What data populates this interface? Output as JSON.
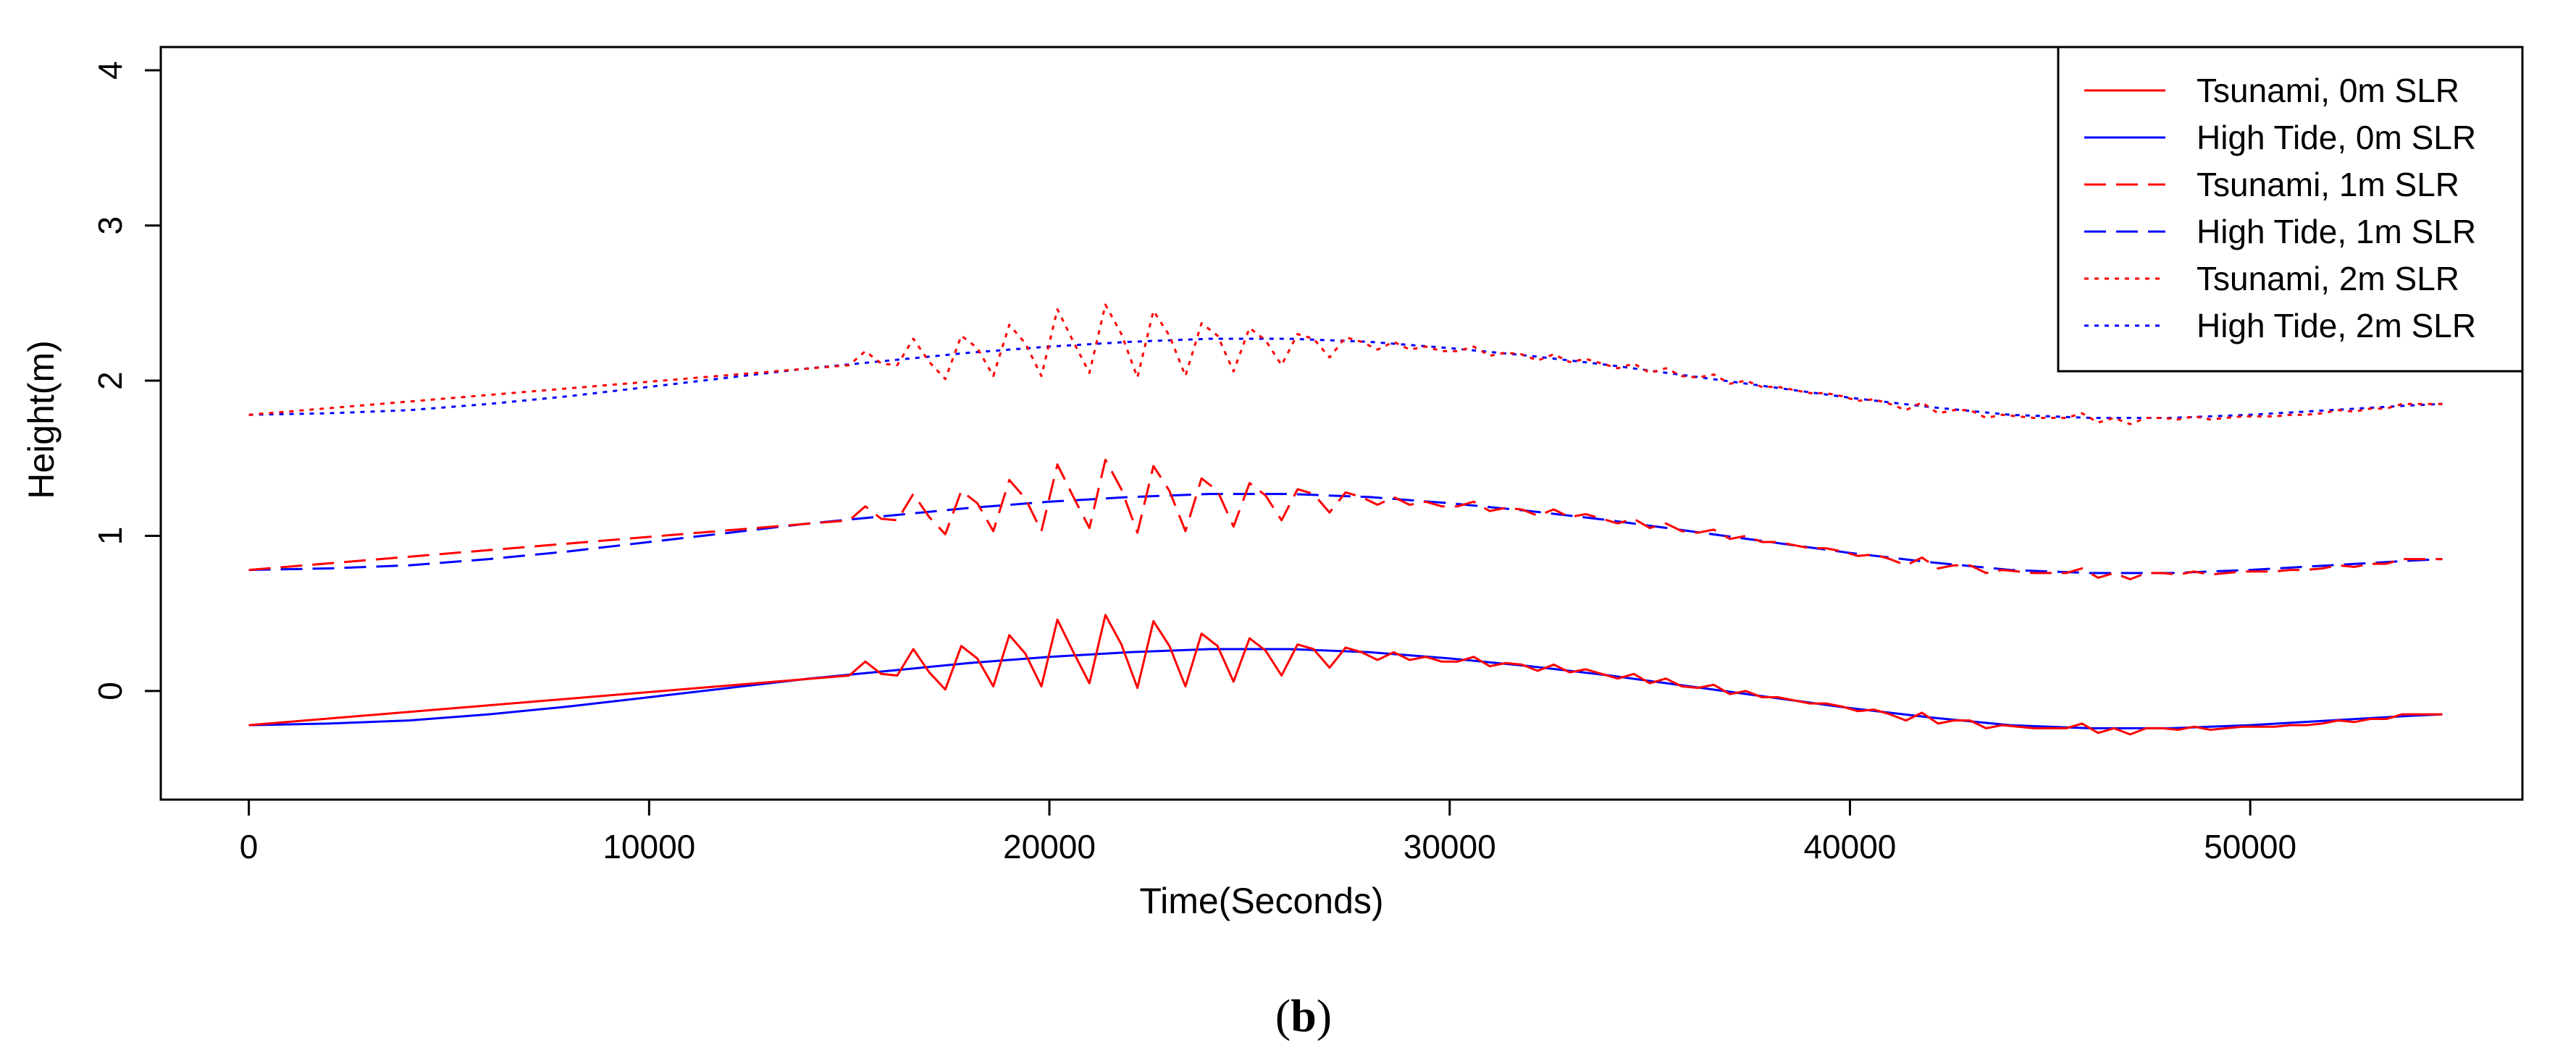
{
  "chart_data": {
    "type": "line",
    "xlabel": "Time(Seconds)",
    "ylabel": "Height(m)",
    "xlim": [
      -2200,
      56800
    ],
    "ylim": [
      -0.7,
      4.15
    ],
    "xticks": [
      0,
      10000,
      20000,
      30000,
      40000,
      50000
    ],
    "xtick_labels": [
      "0",
      "10000",
      "20000",
      "30000",
      "40000",
      "50000"
    ],
    "yticks": [
      0,
      1,
      2,
      3,
      4
    ],
    "ytick_labels": [
      "0",
      "1",
      "2",
      "3",
      "4"
    ],
    "grid": false,
    "legend_position": "top-right",
    "series": [
      {
        "name": "Tsunami, 0m SLR",
        "color": "#ff0000",
        "style": "solid",
        "x": [
          0,
          15000,
          15400,
          15800,
          16200,
          16600,
          17000,
          17400,
          17800,
          18200,
          18600,
          19000,
          19400,
          19800,
          20200,
          20600,
          21000,
          21400,
          21800,
          22200,
          22600,
          23000,
          23400,
          23800,
          24200,
          24600,
          25000,
          25400,
          25800,
          26200,
          26600,
          27000,
          27400,
          27800,
          28200,
          28600,
          29000,
          29400,
          29800,
          30200,
          30600,
          31000,
          31400,
          31800,
          32200,
          32600,
          33000,
          33400,
          33800,
          34200,
          34600,
          35000,
          35400,
          35800,
          36200,
          36600,
          37000,
          37400,
          37800,
          38200,
          38600,
          39000,
          39400,
          39800,
          40200,
          40600,
          41000,
          41400,
          41800,
          42200,
          42600,
          43000,
          43400,
          43800,
          44200,
          44600,
          45000,
          45400,
          45800,
          46200,
          46600,
          47000,
          47400,
          47800,
          48200,
          48600,
          49000,
          49400,
          49800,
          50200,
          50600,
          51000,
          51400,
          51800,
          52200,
          52600,
          53000,
          53400,
          53800,
          54200,
          54600,
          54800
        ],
        "y": [
          -0.22,
          0.1,
          0.19,
          0.11,
          0.1,
          0.27,
          0.12,
          0.01,
          0.29,
          0.21,
          0.03,
          0.36,
          0.24,
          0.03,
          0.46,
          0.25,
          0.05,
          0.49,
          0.3,
          0.02,
          0.45,
          0.29,
          0.03,
          0.37,
          0.29,
          0.06,
          0.34,
          0.26,
          0.1,
          0.3,
          0.27,
          0.15,
          0.28,
          0.25,
          0.2,
          0.25,
          0.2,
          0.22,
          0.19,
          0.19,
          0.22,
          0.16,
          0.18,
          0.17,
          0.13,
          0.17,
          0.12,
          0.14,
          0.11,
          0.08,
          0.11,
          0.05,
          0.08,
          0.03,
          0.02,
          0.04,
          -0.02,
          0.0,
          -0.04,
          -0.04,
          -0.06,
          -0.08,
          -0.08,
          -0.1,
          -0.13,
          -0.12,
          -0.15,
          -0.19,
          -0.14,
          -0.21,
          -0.19,
          -0.19,
          -0.24,
          -0.22,
          -0.23,
          -0.24,
          -0.24,
          -0.24,
          -0.21,
          -0.27,
          -0.24,
          -0.28,
          -0.24,
          -0.24,
          -0.25,
          -0.23,
          -0.25,
          -0.24,
          -0.23,
          -0.23,
          -0.23,
          -0.22,
          -0.22,
          -0.21,
          -0.19,
          -0.2,
          -0.18,
          -0.18,
          -0.15,
          -0.15,
          -0.15,
          -0.15
        ]
      },
      {
        "name": "High Tide, 0m SLR",
        "color": "#0000ff",
        "style": "solid",
        "x": [
          0,
          2000,
          4000,
          6000,
          8000,
          10000,
          12000,
          14000,
          16000,
          18000,
          20000,
          22000,
          24000,
          26000,
          28000,
          30000,
          32000,
          34000,
          36000,
          38000,
          40000,
          42000,
          44000,
          46000,
          48000,
          50000,
          52000,
          54000,
          54800
        ],
        "y": [
          -0.22,
          -0.21,
          -0.19,
          -0.15,
          -0.1,
          -0.04,
          0.02,
          0.08,
          0.13,
          0.18,
          0.22,
          0.25,
          0.27,
          0.27,
          0.25,
          0.21,
          0.16,
          0.1,
          0.03,
          -0.04,
          -0.11,
          -0.17,
          -0.22,
          -0.24,
          -0.24,
          -0.22,
          -0.19,
          -0.16,
          -0.15
        ]
      },
      {
        "name": "Tsunami, 1m SLR",
        "color": "#ff0000",
        "style": "dashed",
        "x": [
          0,
          15000,
          15400,
          15800,
          16200,
          16600,
          17000,
          17400,
          17800,
          18200,
          18600,
          19000,
          19400,
          19800,
          20200,
          20600,
          21000,
          21400,
          21800,
          22200,
          22600,
          23000,
          23400,
          23800,
          24200,
          24600,
          25000,
          25400,
          25800,
          26200,
          26600,
          27000,
          27400,
          27800,
          28200,
          28600,
          29000,
          29400,
          29800,
          30200,
          30600,
          31000,
          31400,
          31800,
          32200,
          32600,
          33000,
          33400,
          33800,
          34200,
          34600,
          35000,
          35400,
          35800,
          36200,
          36600,
          37000,
          37400,
          37800,
          38200,
          38600,
          39000,
          39400,
          39800,
          40200,
          40600,
          41000,
          41400,
          41800,
          42200,
          42600,
          43000,
          43400,
          43800,
          44200,
          44600,
          45000,
          45400,
          45800,
          46200,
          46600,
          47000,
          47400,
          47800,
          48200,
          48600,
          49000,
          49400,
          49800,
          50200,
          50600,
          51000,
          51400,
          51800,
          52200,
          52600,
          53000,
          53400,
          53800,
          54200,
          54600,
          54800
        ],
        "y": [
          0.78,
          1.1,
          1.19,
          1.11,
          1.1,
          1.27,
          1.12,
          1.01,
          1.29,
          1.21,
          1.03,
          1.36,
          1.24,
          1.03,
          1.46,
          1.25,
          1.05,
          1.49,
          1.3,
          1.02,
          1.45,
          1.29,
          1.03,
          1.37,
          1.29,
          1.06,
          1.34,
          1.26,
          1.1,
          1.3,
          1.27,
          1.15,
          1.28,
          1.25,
          1.2,
          1.25,
          1.2,
          1.22,
          1.19,
          1.19,
          1.22,
          1.16,
          1.18,
          1.17,
          1.13,
          1.17,
          1.12,
          1.14,
          1.11,
          1.08,
          1.11,
          1.05,
          1.08,
          1.03,
          1.02,
          1.04,
          0.98,
          1.0,
          0.96,
          0.96,
          0.94,
          0.92,
          0.92,
          0.9,
          0.87,
          0.88,
          0.85,
          0.81,
          0.86,
          0.79,
          0.81,
          0.81,
          0.76,
          0.78,
          0.77,
          0.76,
          0.76,
          0.76,
          0.79,
          0.73,
          0.76,
          0.72,
          0.76,
          0.76,
          0.75,
          0.77,
          0.75,
          0.76,
          0.77,
          0.77,
          0.77,
          0.78,
          0.78,
          0.79,
          0.81,
          0.8,
          0.82,
          0.82,
          0.85,
          0.85,
          0.85,
          0.85
        ]
      },
      {
        "name": "High Tide, 1m SLR",
        "color": "#0000ff",
        "style": "dashed",
        "x": [
          0,
          2000,
          4000,
          6000,
          8000,
          10000,
          12000,
          14000,
          16000,
          18000,
          20000,
          22000,
          24000,
          26000,
          28000,
          30000,
          32000,
          34000,
          36000,
          38000,
          40000,
          42000,
          44000,
          46000,
          48000,
          50000,
          52000,
          54000,
          54800
        ],
        "y": [
          0.78,
          0.79,
          0.81,
          0.85,
          0.9,
          0.96,
          1.02,
          1.08,
          1.13,
          1.18,
          1.22,
          1.25,
          1.27,
          1.27,
          1.25,
          1.21,
          1.16,
          1.1,
          1.03,
          0.96,
          0.89,
          0.83,
          0.78,
          0.76,
          0.76,
          0.78,
          0.81,
          0.84,
          0.85
        ]
      },
      {
        "name": "Tsunami, 2m SLR",
        "color": "#ff0000",
        "style": "dotted",
        "x": [
          0,
          15000,
          15400,
          15800,
          16200,
          16600,
          17000,
          17400,
          17800,
          18200,
          18600,
          19000,
          19400,
          19800,
          20200,
          20600,
          21000,
          21400,
          21800,
          22200,
          22600,
          23000,
          23400,
          23800,
          24200,
          24600,
          25000,
          25400,
          25800,
          26200,
          26600,
          27000,
          27400,
          27800,
          28200,
          28600,
          29000,
          29400,
          29800,
          30200,
          30600,
          31000,
          31400,
          31800,
          32200,
          32600,
          33000,
          33400,
          33800,
          34200,
          34600,
          35000,
          35400,
          35800,
          36200,
          36600,
          37000,
          37400,
          37800,
          38200,
          38600,
          39000,
          39400,
          39800,
          40200,
          40600,
          41000,
          41400,
          41800,
          42200,
          42600,
          43000,
          43400,
          43800,
          44200,
          44600,
          45000,
          45400,
          45800,
          46200,
          46600,
          47000,
          47400,
          47800,
          48200,
          48600,
          49000,
          49400,
          49800,
          50200,
          50600,
          51000,
          51400,
          51800,
          52200,
          52600,
          53000,
          53400,
          53800,
          54200,
          54600,
          54800
        ],
        "y": [
          1.78,
          2.1,
          2.19,
          2.11,
          2.1,
          2.27,
          2.12,
          2.01,
          2.29,
          2.21,
          2.03,
          2.36,
          2.24,
          2.03,
          2.46,
          2.25,
          2.05,
          2.49,
          2.3,
          2.02,
          2.45,
          2.29,
          2.03,
          2.37,
          2.29,
          2.06,
          2.34,
          2.26,
          2.1,
          2.3,
          2.27,
          2.15,
          2.28,
          2.25,
          2.2,
          2.25,
          2.2,
          2.22,
          2.19,
          2.19,
          2.22,
          2.16,
          2.18,
          2.17,
          2.13,
          2.17,
          2.12,
          2.14,
          2.11,
          2.08,
          2.11,
          2.05,
          2.08,
          2.03,
          2.02,
          2.04,
          1.98,
          2.0,
          1.96,
          1.96,
          1.94,
          1.92,
          1.92,
          1.9,
          1.87,
          1.88,
          1.85,
          1.81,
          1.86,
          1.79,
          1.81,
          1.81,
          1.76,
          1.78,
          1.77,
          1.76,
          1.76,
          1.76,
          1.79,
          1.73,
          1.76,
          1.72,
          1.76,
          1.76,
          1.75,
          1.77,
          1.75,
          1.76,
          1.77,
          1.77,
          1.77,
          1.78,
          1.78,
          1.79,
          1.81,
          1.8,
          1.82,
          1.82,
          1.85,
          1.85,
          1.85,
          1.85
        ]
      },
      {
        "name": "High Tide, 2m SLR",
        "color": "#0000ff",
        "style": "dotted",
        "x": [
          0,
          2000,
          4000,
          6000,
          8000,
          10000,
          12000,
          14000,
          16000,
          18000,
          20000,
          22000,
          24000,
          26000,
          28000,
          30000,
          32000,
          34000,
          36000,
          38000,
          40000,
          42000,
          44000,
          46000,
          48000,
          50000,
          52000,
          54000,
          54800
        ],
        "y": [
          1.78,
          1.79,
          1.81,
          1.85,
          1.9,
          1.96,
          2.02,
          2.08,
          2.13,
          2.18,
          2.22,
          2.25,
          2.27,
          2.27,
          2.25,
          2.21,
          2.16,
          2.1,
          2.03,
          1.96,
          1.89,
          1.83,
          1.78,
          1.76,
          1.76,
          1.78,
          1.81,
          1.84,
          1.85
        ]
      }
    ]
  },
  "caption": {
    "open": "(",
    "letter": "b",
    "close": ")"
  }
}
